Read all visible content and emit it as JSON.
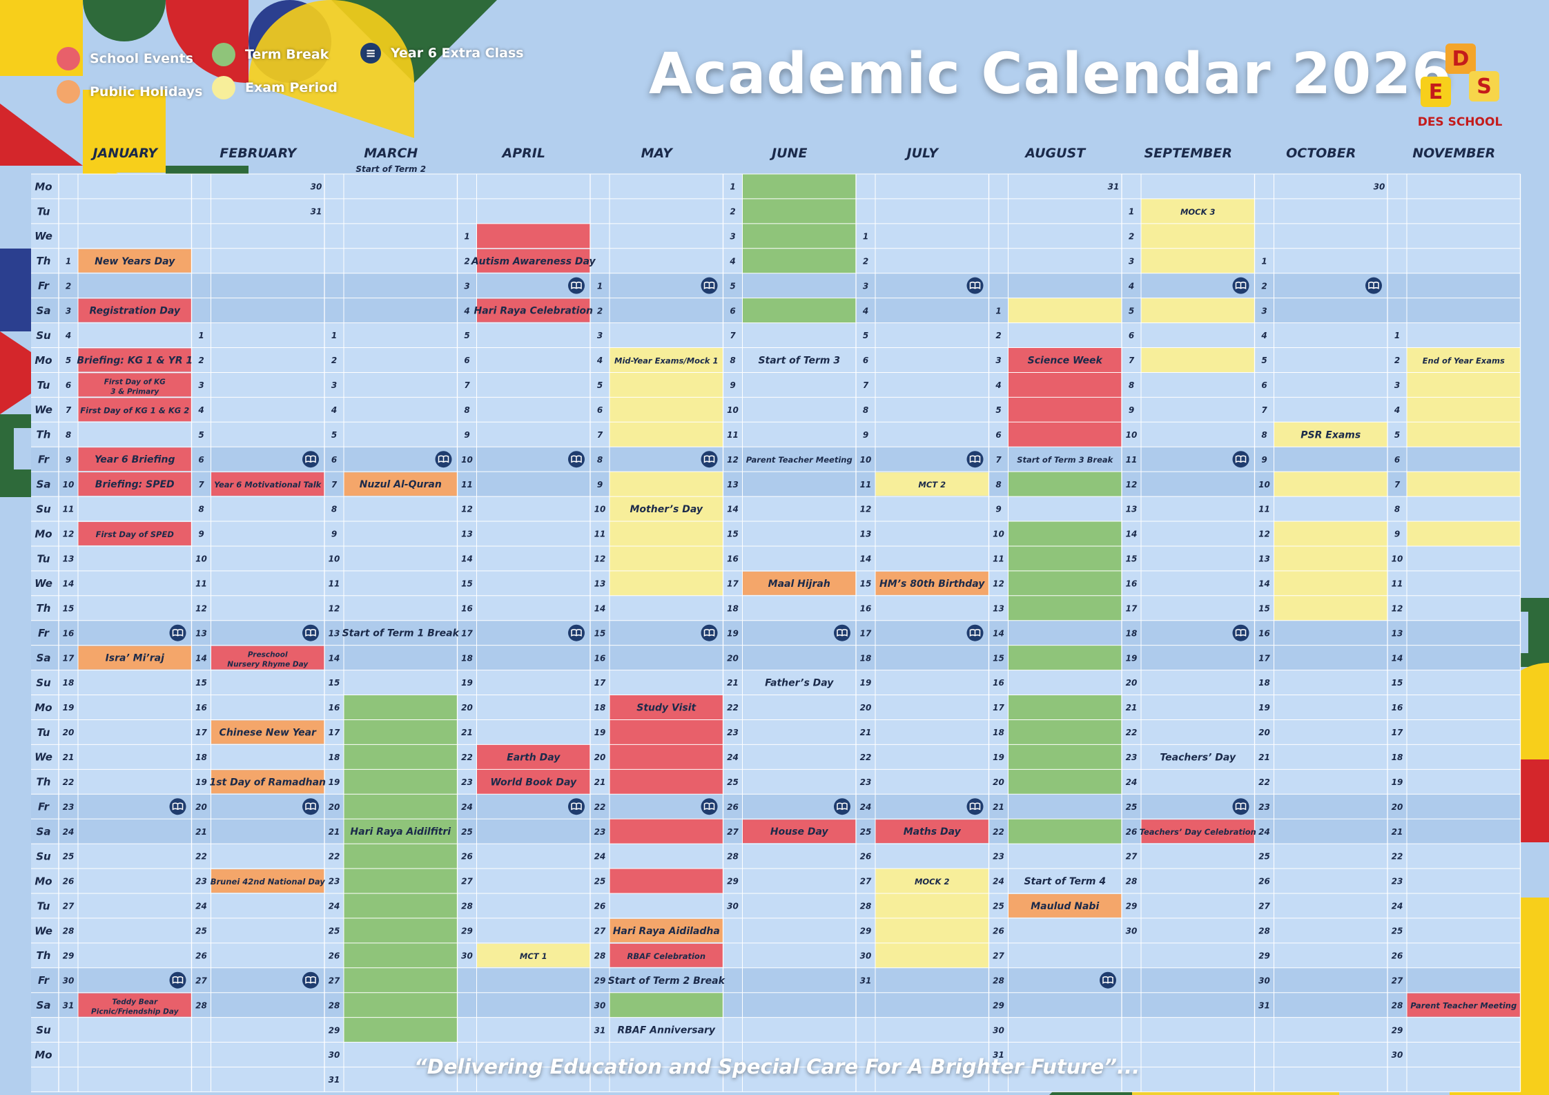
{
  "title": "Academic Calendar 2026",
  "motto": "“Delivering Education and Special Care For A Brighter Future”...",
  "logo": {
    "letters": [
      "D",
      "E",
      "S"
    ],
    "text": "DES SCHOOL"
  },
  "colors": {
    "background": "#b3cfee",
    "rowLight": "#c5dcf6",
    "rowDark": "#aecbec",
    "school_event": "#e8606a",
    "public_holiday": "#f4a66a",
    "term_break": "#8fc47a",
    "exam_period": "#f7ee9a",
    "icon": "#1f3c6e"
  },
  "legend": [
    {
      "label": "School Events",
      "color": "#e8606a",
      "icon": "dot"
    },
    {
      "label": "Public Holidays",
      "color": "#f4a66a",
      "icon": "dot"
    },
    {
      "label": "Term Break",
      "color": "#8fc47a",
      "icon": "dot"
    },
    {
      "label": "Exam Period",
      "color": "#f7ee9a",
      "icon": "dot"
    },
    {
      "label": "Year 6 Extra Class",
      "color": "#1f3c6e",
      "icon": "book-icon"
    }
  ],
  "weekdays": [
    "Mo",
    "Tu",
    "We",
    "Th",
    "Fr",
    "Sa",
    "Su"
  ],
  "months": [
    {
      "name": "JANUARY",
      "start": 3,
      "days": 31,
      "subtitle": ""
    },
    {
      "name": "FEBRUARY",
      "start": 6,
      "days": 28,
      "subtitle": ""
    },
    {
      "name": "MARCH",
      "start": 6,
      "days": 31,
      "subtitle": "Start of Term 2"
    },
    {
      "name": "APRIL",
      "start": 2,
      "days": 30,
      "subtitle": ""
    },
    {
      "name": "MAY",
      "start": 4,
      "days": 31,
      "subtitle": ""
    },
    {
      "name": "JUNE",
      "start": 0,
      "days": 30,
      "subtitle": ""
    },
    {
      "name": "JULY",
      "start": 2,
      "days": 31,
      "subtitle": ""
    },
    {
      "name": "AUGUST",
      "start": 5,
      "days": 31,
      "subtitle": ""
    },
    {
      "name": "SEPTEMBER",
      "start": 1,
      "days": 30,
      "subtitle": ""
    },
    {
      "name": "OCTOBER",
      "start": 3,
      "days": 31,
      "subtitle": ""
    },
    {
      "name": "NOVEMBER",
      "start": 6,
      "days": 30,
      "subtitle": ""
    }
  ],
  "leading_days": [
    {
      "month": 2,
      "row": 0,
      "day": 30
    },
    {
      "month": 2,
      "row": 1,
      "day": 31
    },
    {
      "month": 8,
      "row": 0,
      "day": 31
    },
    {
      "month": 10,
      "row": 0,
      "day": 30
    }
  ],
  "fills": [
    {
      "month": 5,
      "from": 1,
      "to": 4,
      "type": "term_break"
    },
    {
      "month": 5,
      "from": 6,
      "to": 6,
      "type": "term_break"
    },
    {
      "month": 2,
      "from": 16,
      "to": 22,
      "type": "term_break"
    },
    {
      "month": 2,
      "from": 23,
      "to": 29,
      "type": "term_break"
    },
    {
      "month": 3,
      "from": 1,
      "to": 1,
      "type": "school_event"
    },
    {
      "month": 3,
      "from": 22,
      "to": 22,
      "type": "school_event"
    },
    {
      "month": 3,
      "from": 23,
      "to": 23,
      "type": "school_event"
    },
    {
      "month": 4,
      "from": 9,
      "to": 13,
      "type": "exam_period"
    },
    {
      "month": 4,
      "from": 4,
      "to": 7,
      "type": "exam_period"
    },
    {
      "month": 4,
      "from": 18,
      "to": 21,
      "type": "school_event"
    },
    {
      "month": 4,
      "from": 23,
      "to": 23,
      "type": "school_event"
    },
    {
      "month": 4,
      "from": 25,
      "to": 25,
      "type": "school_event"
    },
    {
      "month": 4,
      "from": 30,
      "to": 30,
      "type": "term_break"
    },
    {
      "month": 6,
      "from": 27,
      "to": 30,
      "type": "exam_period"
    },
    {
      "month": 7,
      "from": 1,
      "to": 1,
      "type": "exam_period"
    },
    {
      "month": 7,
      "from": 3,
      "to": 6,
      "type": "school_event"
    },
    {
      "month": 7,
      "from": 8,
      "to": 8,
      "type": "term_break"
    },
    {
      "month": 7,
      "from": 10,
      "to": 13,
      "type": "term_break"
    },
    {
      "month": 7,
      "from": 15,
      "to": 15,
      "type": "term_break"
    },
    {
      "month": 7,
      "from": 17,
      "to": 20,
      "type": "term_break"
    },
    {
      "month": 7,
      "from": 22,
      "to": 22,
      "type": "term_break"
    },
    {
      "month": 8,
      "from": 1,
      "to": 3,
      "type": "exam_period"
    },
    {
      "month": 8,
      "from": 5,
      "to": 5,
      "type": "exam_period"
    },
    {
      "month": 8,
      "from": 7,
      "to": 7,
      "type": "exam_period"
    },
    {
      "month": 9,
      "from": 8,
      "to": 8,
      "type": "exam_period"
    },
    {
      "month": 9,
      "from": 10,
      "to": 10,
      "type": "exam_period"
    },
    {
      "month": 9,
      "from": 12,
      "to": 15,
      "type": "exam_period"
    },
    {
      "month": 10,
      "from": 2,
      "to": 5,
      "type": "exam_period"
    },
    {
      "month": 10,
      "from": 7,
      "to": 7,
      "type": "exam_period"
    },
    {
      "month": 10,
      "from": 9,
      "to": 9,
      "type": "exam_period"
    }
  ],
  "events": [
    {
      "month": 0,
      "day": 1,
      "label": "New Years Day",
      "type": "public_holiday"
    },
    {
      "month": 0,
      "day": 3,
      "label": "Registration Day",
      "type": "school_event"
    },
    {
      "month": 0,
      "day": 5,
      "label": "Briefing: KG 1 & YR 1",
      "type": "school_event"
    },
    {
      "month": 0,
      "day": 6,
      "label": "First Day of KG 3 & Primary",
      "type": "school_event",
      "small": true
    },
    {
      "month": 0,
      "day": 7,
      "label": "First Day of KG 1 & KG 2",
      "type": "school_event",
      "small": true
    },
    {
      "month": 0,
      "day": 9,
      "label": "Year 6 Briefing",
      "type": "school_event"
    },
    {
      "month": 0,
      "day": 10,
      "label": "Briefing: SPED",
      "type": "school_event"
    },
    {
      "month": 0,
      "day": 12,
      "label": "First Day of SPED",
      "type": "school_event",
      "small": true
    },
    {
      "month": 0,
      "day": 17,
      "label": "Isra’ Mi’raj",
      "type": "public_holiday"
    },
    {
      "month": 0,
      "day": 31,
      "label": "Teddy Bear Picnic/Friendship Day",
      "type": "school_event",
      "small": true
    },
    {
      "month": 1,
      "day": 7,
      "label": "Year 6 Motivational Talk",
      "type": "school_event",
      "small": true
    },
    {
      "month": 1,
      "day": 14,
      "label": "Preschool Nursery Rhyme Day",
      "type": "school_event",
      "small": true
    },
    {
      "month": 1,
      "day": 17,
      "label": "Chinese New Year",
      "type": "public_holiday"
    },
    {
      "month": 1,
      "day": 19,
      "label": "1st Day of Ramadhan",
      "type": "public_holiday"
    },
    {
      "month": 1,
      "day": 23,
      "label": "Brunei 42nd National Day",
      "type": "public_holiday",
      "small": true
    },
    {
      "month": 2,
      "day": 7,
      "label": "Nuzul Al-Quran",
      "type": "public_holiday"
    },
    {
      "month": 2,
      "day": 13,
      "label": "Start of Term 1 Break",
      "type": "plain"
    },
    {
      "month": 2,
      "day": 21,
      "label": "Hari Raya Aidilfitri",
      "type": "term_break"
    },
    {
      "month": 3,
      "day": 2,
      "label": "Autism Awareness Day",
      "type": "school_event"
    },
    {
      "month": 3,
      "day": 4,
      "label": "Hari Raya Celebration",
      "type": "school_event"
    },
    {
      "month": 3,
      "day": 22,
      "label": "Earth Day",
      "type": "school_event"
    },
    {
      "month": 3,
      "day": 23,
      "label": "World Book Day",
      "type": "school_event"
    },
    {
      "month": 3,
      "day": 30,
      "label": "MCT 1",
      "type": "exam_period",
      "small": true
    },
    {
      "month": 4,
      "day": 4,
      "label": "Mid-Year Exams/Mock 1",
      "type": "exam_period",
      "small": true
    },
    {
      "month": 4,
      "day": 10,
      "label": "Mother’s Day",
      "type": "plain"
    },
    {
      "month": 4,
      "day": 18,
      "label": "Study Visit",
      "type": "school_event"
    },
    {
      "month": 4,
      "day": 27,
      "label": "Hari Raya Aidiladha",
      "type": "public_holiday"
    },
    {
      "month": 4,
      "day": 28,
      "label": "RBAF Celebration",
      "type": "school_event",
      "small": true
    },
    {
      "month": 4,
      "day": 29,
      "label": "Start of Term 2 Break",
      "type": "plain"
    },
    {
      "month": 4,
      "day": 31,
      "label": "RBAF Anniversary",
      "type": "plain"
    },
    {
      "month": 5,
      "day": 8,
      "label": "Start of Term 3",
      "type": "plain"
    },
    {
      "month": 5,
      "day": 12,
      "label": "Parent Teacher Meeting",
      "type": "plain",
      "small": true
    },
    {
      "month": 5,
      "day": 17,
      "label": "Maal Hijrah",
      "type": "public_holiday"
    },
    {
      "month": 5,
      "day": 21,
      "label": "Father’s Day",
      "type": "plain"
    },
    {
      "month": 5,
      "day": 27,
      "label": "House Day",
      "type": "school_event"
    },
    {
      "month": 6,
      "day": 11,
      "label": "MCT 2",
      "type": "exam_period",
      "small": true
    },
    {
      "month": 6,
      "day": 15,
      "label": "HM’s 80th Birthday",
      "type": "public_holiday"
    },
    {
      "month": 6,
      "day": 25,
      "label": "Maths Day",
      "type": "school_event"
    },
    {
      "month": 6,
      "day": 27,
      "label": "MOCK 2",
      "type": "exam_period",
      "small": true
    },
    {
      "month": 7,
      "day": 3,
      "label": "Science Week",
      "type": "school_event"
    },
    {
      "month": 7,
      "day": 7,
      "label": "Start of Term 3 Break",
      "type": "plain",
      "small": true
    },
    {
      "month": 7,
      "day": 24,
      "label": "Start of Term 4",
      "type": "plain"
    },
    {
      "month": 7,
      "day": 25,
      "label": "Maulud Nabi",
      "type": "public_holiday"
    },
    {
      "month": 8,
      "day": 1,
      "label": "MOCK 3",
      "type": "exam_period",
      "small": true
    },
    {
      "month": 8,
      "day": 23,
      "label": "Teachers’ Day",
      "type": "plain"
    },
    {
      "month": 8,
      "day": 26,
      "label": "Teachers’ Day Celebration",
      "type": "school_event",
      "small": true
    },
    {
      "month": 9,
      "day": 8,
      "label": "PSR Exams",
      "type": "exam_period"
    },
    {
      "month": 10,
      "day": 2,
      "label": "End of Year Exams",
      "type": "exam_period",
      "small": true
    },
    {
      "month": 10,
      "day": 28,
      "label": "Parent Teacher Meeting",
      "type": "school_event",
      "small": true
    }
  ],
  "y6_class": [
    {
      "month": 0,
      "days": [
        16,
        23,
        30
      ]
    },
    {
      "month": 1,
      "days": [
        6,
        13,
        20,
        27
      ]
    },
    {
      "month": 2,
      "days": [
        6
      ]
    },
    {
      "month": 3,
      "days": [
        3,
        10,
        17,
        24
      ]
    },
    {
      "month": 4,
      "days": [
        1,
        8,
        15,
        22
      ]
    },
    {
      "month": 5,
      "days": [
        19,
        26
      ]
    },
    {
      "month": 6,
      "days": [
        3,
        10,
        17,
        24
      ]
    },
    {
      "month": 7,
      "days": [
        28
      ]
    },
    {
      "month": 8,
      "days": [
        4,
        11,
        18,
        25
      ]
    },
    {
      "month": 9,
      "days": [
        2
      ]
    }
  ]
}
